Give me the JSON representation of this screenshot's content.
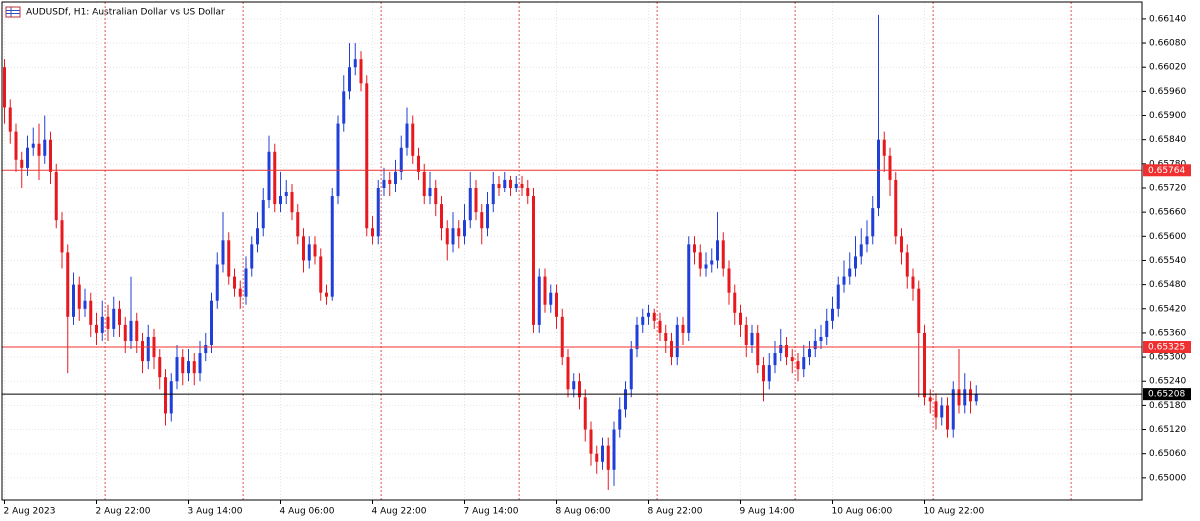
{
  "chart_data": {
    "type": "candlestick",
    "title": "AUDUSDf, H1:  Australian Dollar vs US Dollar",
    "categories": [
      "2 Aug 2023",
      null,
      null,
      null,
      null,
      null,
      null,
      null,
      null,
      null,
      null,
      null,
      null,
      null,
      null,
      null,
      "2 Aug 22:00",
      null,
      null,
      null,
      null,
      null,
      null,
      null,
      null,
      null,
      null,
      null,
      null,
      null,
      null,
      null,
      "3 Aug 14:00",
      null,
      null,
      null,
      null,
      null,
      null,
      null,
      null,
      null,
      null,
      null,
      null,
      null,
      null,
      null,
      "4 Aug 06:00",
      null,
      null,
      null,
      null,
      null,
      null,
      null,
      null,
      null,
      null,
      null,
      null,
      null,
      null,
      null,
      "4 Aug 22:00",
      null,
      null,
      null,
      null,
      null,
      null,
      null,
      null,
      null,
      null,
      null,
      null,
      null,
      null,
      null,
      "7 Aug 14:00",
      null,
      null,
      null,
      null,
      null,
      null,
      null,
      null,
      null,
      null,
      null,
      null,
      null,
      null,
      null,
      "8 Aug 06:00",
      null,
      null,
      null,
      null,
      null,
      null,
      null,
      null,
      null,
      null,
      null,
      null,
      null,
      null,
      null,
      "8 Aug 22:00",
      null,
      null,
      null,
      null,
      null,
      null,
      null,
      null,
      null,
      null,
      null,
      null,
      null,
      null,
      null,
      "9 Aug 14:00",
      null,
      null,
      null,
      null,
      null,
      null,
      null,
      null,
      null,
      null,
      null,
      null,
      null,
      null,
      null,
      "10 Aug 06:00",
      null,
      null,
      null,
      null,
      null,
      null,
      null,
      null,
      null,
      null,
      null,
      null,
      null,
      null,
      null,
      "10 Aug 22:00",
      null,
      null,
      null,
      null,
      null,
      null,
      null,
      null,
      null
    ],
    "open": [
      0.6602,
      0.6592,
      0.6586,
      0.6579,
      0.6577,
      0.6582,
      0.6583,
      0.658,
      0.6584,
      0.6576,
      0.6564,
      0.6556,
      0.654,
      0.6548,
      0.6542,
      0.6544,
      0.6538,
      0.6536,
      0.654,
      0.6537,
      0.6542,
      0.6538,
      0.6534,
      0.6539,
      0.6534,
      0.6529,
      0.6535,
      0.653,
      0.6525,
      0.6516,
      0.6524,
      0.653,
      0.6526,
      0.6529,
      0.6526,
      0.6531,
      0.6533,
      0.6544,
      0.6553,
      0.6559,
      0.655,
      0.6547,
      0.6545,
      0.6552,
      0.6558,
      0.6562,
      0.6569,
      0.6581,
      0.6568,
      0.657,
      0.6571,
      0.6566,
      0.656,
      0.6554,
      0.6558,
      0.6555,
      0.6546,
      0.6545,
      0.657,
      0.6588,
      0.6596,
      0.6602,
      0.6604,
      0.6598,
      0.6562,
      0.656,
      0.6572,
      0.6574,
      0.6573,
      0.6576,
      0.6582,
      0.6588,
      0.658,
      0.6576,
      0.657,
      0.6572,
      0.6568,
      0.6562,
      0.6558,
      0.6562,
      0.656,
      0.6564,
      0.6572,
      0.6566,
      0.6562,
      0.6568,
      0.6573,
      0.6572,
      0.6574,
      0.6572,
      0.6573,
      0.6572,
      0.657,
      0.6538,
      0.655,
      0.6543,
      0.6546,
      0.654,
      0.653,
      0.6522,
      0.6524,
      0.652,
      0.6512,
      0.6506,
      0.6504,
      0.6508,
      0.6502,
      0.6512,
      0.6517,
      0.6522,
      0.6532,
      0.6538,
      0.654,
      0.6541,
      0.6539,
      0.6536,
      0.6534,
      0.653,
      0.6538,
      0.6536,
      0.6558,
      0.6556,
      0.6552,
      0.6553,
      0.6554,
      0.6559,
      0.6552,
      0.6546,
      0.6541,
      0.6538,
      0.6533,
      0.6536,
      0.6528,
      0.6524,
      0.6528,
      0.6531,
      0.6533,
      0.653,
      0.6529,
      0.6527,
      0.653,
      0.6532,
      0.6534,
      0.6535,
      0.6539,
      0.6542,
      0.6548,
      0.655,
      0.6552,
      0.6555,
      0.6558,
      0.656,
      0.6567,
      0.6584,
      0.658,
      0.6574,
      0.656,
      0.6556,
      0.655,
      0.6547,
      0.6536,
      0.652,
      0.6519,
      0.6515,
      0.6518,
      0.6512,
      0.6522,
      0.6518,
      0.6522,
      0.6519
    ],
    "high": [
      0.6604,
      0.6594,
      0.6588,
      0.6581,
      0.6585,
      0.6587,
      0.6588,
      0.659,
      0.6586,
      0.6578,
      0.6566,
      0.6558,
      0.6551,
      0.655,
      0.6547,
      0.6546,
      0.6541,
      0.6544,
      0.6543,
      0.6545,
      0.6544,
      0.654,
      0.655,
      0.6541,
      0.6536,
      0.6538,
      0.6537,
      0.6532,
      0.6527,
      0.6526,
      0.6533,
      0.6532,
      0.6532,
      0.6531,
      0.6534,
      0.6536,
      0.6546,
      0.6556,
      0.6566,
      0.6561,
      0.6552,
      0.6549,
      0.6555,
      0.656,
      0.6566,
      0.6572,
      0.6585,
      0.6583,
      0.6576,
      0.6574,
      0.6573,
      0.6568,
      0.6562,
      0.656,
      0.656,
      0.6557,
      0.6548,
      0.6572,
      0.659,
      0.66,
      0.6608,
      0.6608,
      0.6606,
      0.66,
      0.6565,
      0.6574,
      0.6577,
      0.6576,
      0.6579,
      0.6585,
      0.6592,
      0.659,
      0.6582,
      0.6578,
      0.6576,
      0.6574,
      0.657,
      0.6564,
      0.6566,
      0.6564,
      0.6568,
      0.6576,
      0.6574,
      0.6568,
      0.6571,
      0.6576,
      0.6575,
      0.6576,
      0.6575,
      0.6575,
      0.6575,
      0.6574,
      0.6572,
      0.6552,
      0.6552,
      0.6548,
      0.6548,
      0.6542,
      0.6532,
      0.6526,
      0.6526,
      0.6522,
      0.6514,
      0.6508,
      0.651,
      0.651,
      0.6514,
      0.652,
      0.6524,
      0.6534,
      0.654,
      0.6542,
      0.6543,
      0.6542,
      0.6541,
      0.6538,
      0.6536,
      0.654,
      0.654,
      0.656,
      0.656,
      0.6558,
      0.6556,
      0.6557,
      0.6566,
      0.6561,
      0.6554,
      0.6548,
      0.6543,
      0.654,
      0.6538,
      0.6538,
      0.653,
      0.6531,
      0.6534,
      0.6537,
      0.6535,
      0.6532,
      0.6531,
      0.6533,
      0.6534,
      0.6537,
      0.6538,
      0.6542,
      0.6545,
      0.655,
      0.6554,
      0.6556,
      0.656,
      0.6562,
      0.6564,
      0.657,
      0.6615,
      0.6586,
      0.6582,
      0.6576,
      0.6562,
      0.6558,
      0.6552,
      0.6549,
      0.6538,
      0.6522,
      0.6521,
      0.652,
      0.652,
      0.6524,
      0.6532,
      0.6526,
      0.6524,
      0.6523
    ],
    "low": [
      0.6588,
      0.6583,
      0.6576,
      0.6572,
      0.6575,
      0.658,
      0.6574,
      0.6578,
      0.6573,
      0.6562,
      0.6552,
      0.6526,
      0.6538,
      0.6539,
      0.654,
      0.6535,
      0.6533,
      0.6534,
      0.6534,
      0.6535,
      0.6535,
      0.6531,
      0.6532,
      0.6531,
      0.6526,
      0.6527,
      0.6527,
      0.6522,
      0.6513,
      0.6514,
      0.6522,
      0.6523,
      0.6524,
      0.6523,
      0.6524,
      0.6529,
      0.6531,
      0.6542,
      0.6551,
      0.6548,
      0.6545,
      0.6542,
      0.6543,
      0.655,
      0.6556,
      0.656,
      0.6567,
      0.6566,
      0.6566,
      0.6568,
      0.6564,
      0.6558,
      0.6551,
      0.6552,
      0.6553,
      0.6544,
      0.6543,
      0.6544,
      0.6568,
      0.6586,
      0.6594,
      0.66,
      0.6596,
      0.656,
      0.6558,
      0.6558,
      0.657,
      0.657,
      0.6571,
      0.6574,
      0.658,
      0.6578,
      0.6574,
      0.6568,
      0.6568,
      0.6565,
      0.6559,
      0.6554,
      0.6556,
      0.6557,
      0.6558,
      0.6562,
      0.6564,
      0.6558,
      0.656,
      0.6566,
      0.657,
      0.6571,
      0.657,
      0.6571,
      0.657,
      0.6568,
      0.6536,
      0.6536,
      0.6541,
      0.6541,
      0.6537,
      0.6528,
      0.652,
      0.652,
      0.6517,
      0.6509,
      0.6503,
      0.6501,
      0.6502,
      0.6497,
      0.6498,
      0.651,
      0.6515,
      0.652,
      0.653,
      0.6536,
      0.6538,
      0.6537,
      0.6534,
      0.6531,
      0.6528,
      0.6528,
      0.6533,
      0.6534,
      0.6553,
      0.655,
      0.655,
      0.6551,
      0.6552,
      0.655,
      0.6543,
      0.6538,
      0.6535,
      0.653,
      0.6531,
      0.6526,
      0.6519,
      0.6522,
      0.6526,
      0.6529,
      0.6528,
      0.6526,
      0.6524,
      0.6525,
      0.6528,
      0.653,
      0.6532,
      0.6533,
      0.6537,
      0.654,
      0.6546,
      0.6548,
      0.655,
      0.6553,
      0.6556,
      0.6558,
      0.6565,
      0.6576,
      0.657,
      0.6558,
      0.6553,
      0.6547,
      0.6544,
      0.652,
      0.6518,
      0.6516,
      0.6512,
      0.6513,
      0.651,
      0.651,
      0.6516,
      0.6516,
      0.6516,
      0.6518
    ],
    "close": [
      0.6592,
      0.6586,
      0.6579,
      0.6577,
      0.6582,
      0.6583,
      0.658,
      0.6584,
      0.6576,
      0.6564,
      0.6556,
      0.654,
      0.6548,
      0.6542,
      0.6544,
      0.6538,
      0.6536,
      0.654,
      0.6537,
      0.6542,
      0.6538,
      0.6534,
      0.6539,
      0.6534,
      0.6529,
      0.6535,
      0.653,
      0.6525,
      0.6516,
      0.6524,
      0.653,
      0.6526,
      0.6529,
      0.6526,
      0.6531,
      0.6533,
      0.6544,
      0.6553,
      0.6559,
      0.655,
      0.6547,
      0.6545,
      0.6552,
      0.6558,
      0.6562,
      0.6569,
      0.6581,
      0.6568,
      0.657,
      0.6571,
      0.6566,
      0.656,
      0.6554,
      0.6558,
      0.6555,
      0.6546,
      0.6545,
      0.657,
      0.6588,
      0.6596,
      0.6602,
      0.6604,
      0.6598,
      0.6562,
      0.656,
      0.6572,
      0.6574,
      0.6573,
      0.6576,
      0.6582,
      0.6588,
      0.658,
      0.6576,
      0.657,
      0.6572,
      0.6568,
      0.6562,
      0.6558,
      0.6562,
      0.656,
      0.6564,
      0.6572,
      0.6566,
      0.6562,
      0.6568,
      0.6573,
      0.6572,
      0.6574,
      0.6572,
      0.6573,
      0.6572,
      0.657,
      0.6538,
      0.655,
      0.6543,
      0.6546,
      0.654,
      0.653,
      0.6522,
      0.6524,
      0.652,
      0.6512,
      0.6506,
      0.6504,
      0.6508,
      0.6502,
      0.6512,
      0.6517,
      0.6522,
      0.6532,
      0.6538,
      0.654,
      0.6541,
      0.6539,
      0.6536,
      0.6534,
      0.653,
      0.6538,
      0.6536,
      0.6558,
      0.6556,
      0.6552,
      0.6553,
      0.6554,
      0.6559,
      0.6552,
      0.6546,
      0.6541,
      0.6538,
      0.6533,
      0.6536,
      0.6528,
      0.6524,
      0.6528,
      0.6531,
      0.6533,
      0.653,
      0.6529,
      0.6527,
      0.653,
      0.6532,
      0.6534,
      0.6535,
      0.6539,
      0.6542,
      0.6548,
      0.655,
      0.6552,
      0.6555,
      0.6558,
      0.656,
      0.6567,
      0.6584,
      0.658,
      0.6574,
      0.656,
      0.6556,
      0.655,
      0.6547,
      0.6536,
      0.652,
      0.6519,
      0.6515,
      0.6518,
      0.6512,
      0.6522,
      0.6518,
      0.6522,
      0.6519,
      0.65208
    ],
    "up_color": "#1f3fd8",
    "down_color": "#e8191e",
    "ylim": [
      0.64945,
      0.66182
    ],
    "yticks": [
      {
        "value": 0.65,
        "label": "0.65000"
      },
      {
        "value": 0.6506,
        "label": "0.65060"
      },
      {
        "value": 0.6512,
        "label": "0.65120"
      },
      {
        "value": 0.6518,
        "label": "0.65180"
      },
      {
        "value": 0.6524,
        "label": "0.65240"
      },
      {
        "value": 0.653,
        "label": "0.65300"
      },
      {
        "value": 0.6536,
        "label": "0.65360"
      },
      {
        "value": 0.6542,
        "label": "0.65420"
      },
      {
        "value": 0.6548,
        "label": "0.65480"
      },
      {
        "value": 0.6554,
        "label": "0.65540"
      },
      {
        "value": 0.656,
        "label": "0.65600"
      },
      {
        "value": 0.6566,
        "label": "0.65660"
      },
      {
        "value": 0.6572,
        "label": "0.65720"
      },
      {
        "value": 0.6578,
        "label": "0.65780"
      },
      {
        "value": 0.6584,
        "label": "0.65840"
      },
      {
        "value": 0.659,
        "label": "0.65900"
      },
      {
        "value": 0.6596,
        "label": "0.65960"
      },
      {
        "value": 0.6602,
        "label": "0.66020"
      },
      {
        "value": 0.6608,
        "label": "0.66080"
      },
      {
        "value": 0.6614,
        "label": "0.66140"
      }
    ],
    "grid": true,
    "hlines": [
      {
        "value": 0.65764,
        "color": "#f03030"
      },
      {
        "value": 0.65325,
        "color": "#f03030"
      },
      {
        "value": 0.65208,
        "color": "#000000"
      }
    ]
  }
}
